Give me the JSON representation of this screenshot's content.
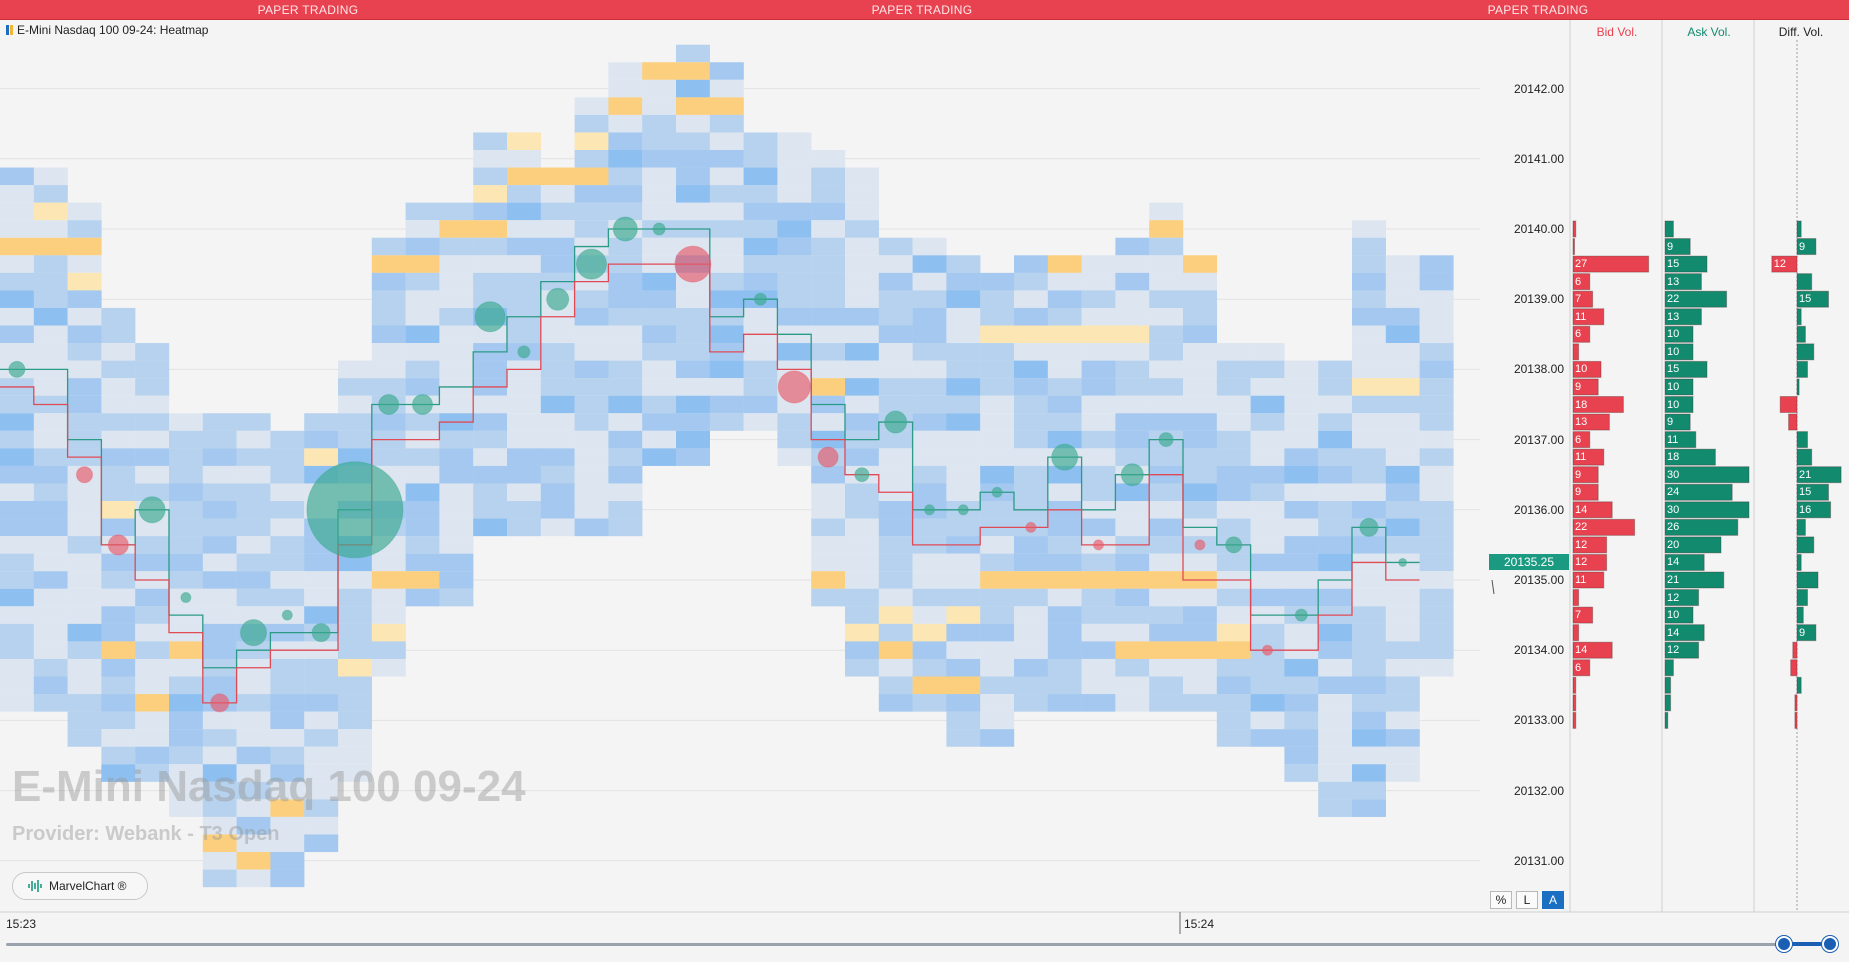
{
  "banner": {
    "label": "PAPER TRADING"
  },
  "chart": {
    "title": "E-Mini Nasdaq 100 09-24: Heatmap",
    "watermark_symbol": "E-Mini Nasdaq 100 09-24",
    "watermark_provider": "Provider: Webank - T3 Open",
    "badge_label": "MarvelChart ®",
    "last_price": "20135.25"
  },
  "price_axis": {
    "labels": [
      "20142.00",
      "20141.00",
      "20140.00",
      "20139.00",
      "20138.00",
      "20137.00",
      "20136.00",
      "20135.00",
      "20134.00",
      "20133.00",
      "20132.00",
      "20131.00"
    ]
  },
  "time_axis": {
    "labels": [
      "15:23",
      "15:24"
    ]
  },
  "scale_buttons": {
    "percent": "%",
    "log": "L",
    "auto": "A",
    "active": "A"
  },
  "volume_columns": {
    "headers": {
      "bid": "Bid Vol.",
      "ask": "Ask Vol.",
      "diff": "Diff. Vol."
    },
    "bid_rows": [
      {
        "price": "20140.00",
        "value": "",
        "bar": 1
      },
      {
        "price": "20139.75",
        "value": "",
        "bar": 0
      },
      {
        "price": "20139.50",
        "value": "27",
        "bar": 27
      },
      {
        "price": "20139.25",
        "value": "6",
        "bar": 6
      },
      {
        "price": "20139.00",
        "value": "7",
        "bar": 7
      },
      {
        "price": "20138.75",
        "value": "11",
        "bar": 11
      },
      {
        "price": "20138.50",
        "value": "6",
        "bar": 6
      },
      {
        "price": "20138.25",
        "value": "",
        "bar": 2
      },
      {
        "price": "20138.00",
        "value": "10",
        "bar": 10
      },
      {
        "price": "20137.75",
        "value": "9",
        "bar": 9
      },
      {
        "price": "20137.50",
        "value": "18",
        "bar": 18
      },
      {
        "price": "20137.25",
        "value": "13",
        "bar": 13
      },
      {
        "price": "20137.00",
        "value": "6",
        "bar": 6
      },
      {
        "price": "20136.75",
        "value": "11",
        "bar": 11
      },
      {
        "price": "20136.50",
        "value": "9",
        "bar": 9
      },
      {
        "price": "20136.25",
        "value": "9",
        "bar": 9
      },
      {
        "price": "20136.00",
        "value": "14",
        "bar": 14
      },
      {
        "price": "20135.75",
        "value": "22",
        "bar": 22
      },
      {
        "price": "20135.50",
        "value": "12",
        "bar": 12
      },
      {
        "price": "20135.25",
        "value": "12",
        "bar": 12
      },
      {
        "price": "20135.00",
        "value": "11",
        "bar": 11
      },
      {
        "price": "20134.75",
        "value": "",
        "bar": 2
      },
      {
        "price": "20134.50",
        "value": "7",
        "bar": 7
      },
      {
        "price": "20134.25",
        "value": "",
        "bar": 2
      },
      {
        "price": "20134.00",
        "value": "14",
        "bar": 14
      },
      {
        "price": "20133.75",
        "value": "6",
        "bar": 6
      },
      {
        "price": "20133.50",
        "value": "",
        "bar": 1
      },
      {
        "price": "20133.25",
        "value": "",
        "bar": 1
      },
      {
        "price": "20133.00",
        "value": "",
        "bar": 1
      }
    ],
    "ask_rows": [
      {
        "price": "20140.00",
        "value": "",
        "bar": 3
      },
      {
        "price": "20139.75",
        "value": "9",
        "bar": 9
      },
      {
        "price": "20139.50",
        "value": "15",
        "bar": 15
      },
      {
        "price": "20139.25",
        "value": "13",
        "bar": 13
      },
      {
        "price": "20139.00",
        "value": "22",
        "bar": 22
      },
      {
        "price": "20138.75",
        "value": "13",
        "bar": 13
      },
      {
        "price": "20138.50",
        "value": "10",
        "bar": 10
      },
      {
        "price": "20138.25",
        "value": "10",
        "bar": 10
      },
      {
        "price": "20138.00",
        "value": "15",
        "bar": 15
      },
      {
        "price": "20137.75",
        "value": "10",
        "bar": 10
      },
      {
        "price": "20137.50",
        "value": "10",
        "bar": 10
      },
      {
        "price": "20137.25",
        "value": "9",
        "bar": 9
      },
      {
        "price": "20137.00",
        "value": "11",
        "bar": 11
      },
      {
        "price": "20136.75",
        "value": "18",
        "bar": 18
      },
      {
        "price": "20136.50",
        "value": "30",
        "bar": 30
      },
      {
        "price": "20136.25",
        "value": "24",
        "bar": 24
      },
      {
        "price": "20136.00",
        "value": "30",
        "bar": 30
      },
      {
        "price": "20135.75",
        "value": "26",
        "bar": 26
      },
      {
        "price": "20135.50",
        "value": "20",
        "bar": 20
      },
      {
        "price": "20135.25",
        "value": "14",
        "bar": 14
      },
      {
        "price": "20135.00",
        "value": "21",
        "bar": 21
      },
      {
        "price": "20134.75",
        "value": "12",
        "bar": 12
      },
      {
        "price": "20134.50",
        "value": "10",
        "bar": 10
      },
      {
        "price": "20134.25",
        "value": "14",
        "bar": 14
      },
      {
        "price": "20134.00",
        "value": "12",
        "bar": 12
      },
      {
        "price": "20133.75",
        "value": "",
        "bar": 3
      },
      {
        "price": "20133.50",
        "value": "",
        "bar": 2
      },
      {
        "price": "20133.25",
        "value": "",
        "bar": 2
      },
      {
        "price": "20133.00",
        "value": "",
        "bar": 1
      }
    ],
    "diff_rows": [
      {
        "price": "20140.00",
        "value": "",
        "bar": 2
      },
      {
        "price": "20139.75",
        "value": "9",
        "bar": 9
      },
      {
        "price": "20139.50",
        "value": "12",
        "bar": -12
      },
      {
        "price": "20139.25",
        "value": "",
        "bar": 7
      },
      {
        "price": "20139.00",
        "value": "15",
        "bar": 15
      },
      {
        "price": "20138.75",
        "value": "",
        "bar": 2
      },
      {
        "price": "20138.50",
        "value": "",
        "bar": 4
      },
      {
        "price": "20138.25",
        "value": "",
        "bar": 8
      },
      {
        "price": "20138.00",
        "value": "",
        "bar": 5
      },
      {
        "price": "20137.75",
        "value": "",
        "bar": 1
      },
      {
        "price": "20137.50",
        "value": "",
        "bar": -8
      },
      {
        "price": "20137.25",
        "value": "",
        "bar": -4
      },
      {
        "price": "20137.00",
        "value": "",
        "bar": 5
      },
      {
        "price": "20136.75",
        "value": "",
        "bar": 7
      },
      {
        "price": "20136.50",
        "value": "21",
        "bar": 21
      },
      {
        "price": "20136.25",
        "value": "15",
        "bar": 15
      },
      {
        "price": "20136.00",
        "value": "16",
        "bar": 16
      },
      {
        "price": "20135.75",
        "value": "",
        "bar": 4
      },
      {
        "price": "20135.50",
        "value": "",
        "bar": 8
      },
      {
        "price": "20135.25",
        "value": "",
        "bar": 2
      },
      {
        "price": "20135.00",
        "value": "",
        "bar": 10
      },
      {
        "price": "20134.75",
        "value": "",
        "bar": 5
      },
      {
        "price": "20134.50",
        "value": "",
        "bar": 3
      },
      {
        "price": "20134.25",
        "value": "9",
        "bar": 9
      },
      {
        "price": "20134.00",
        "value": "",
        "bar": -2
      },
      {
        "price": "20133.75",
        "value": "",
        "bar": -3
      },
      {
        "price": "20133.50",
        "value": "",
        "bar": 2
      },
      {
        "price": "20133.25",
        "value": "",
        "bar": -1
      },
      {
        "price": "20133.00",
        "value": "",
        "bar": -1
      }
    ]
  },
  "colors": {
    "banner": "#e8414f",
    "bid": "#e8414f",
    "ask": "#118a6e",
    "ask_line": "#2b9a86",
    "bid_line": "#e04a55",
    "bubble_ask": "#3aa98f",
    "bubble_bid": "#e85a6a",
    "heat_low": "#dde6f0",
    "heat_mid": "#b6d2ee",
    "heat_high": "#8dbff0",
    "heat_liquidity": "#fbcf7e"
  }
}
